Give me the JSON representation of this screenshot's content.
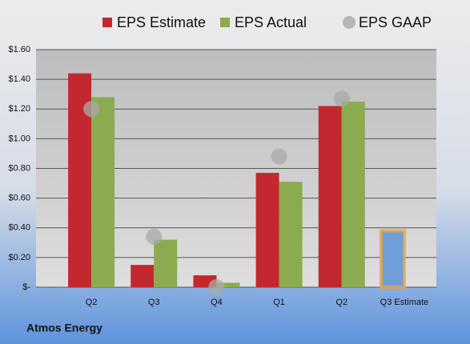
{
  "chart_data": {
    "type": "bar",
    "footer": "Atmos Energy",
    "categories": [
      "Q2",
      "Q3",
      "Q4",
      "Q1",
      "Q2",
      "Q3 Estimate"
    ],
    "series": [
      {
        "name": "EPS Estimate",
        "color": "#c3282e",
        "values": [
          1.44,
          0.15,
          0.08,
          0.77,
          1.22,
          0.38
        ]
      },
      {
        "name": "EPS Actual",
        "color": "#8cab4e",
        "values": [
          1.28,
          0.32,
          0.03,
          0.71,
          1.25,
          null
        ]
      },
      {
        "name": "EPS GAAP",
        "color": "#a9a9a9",
        "marker": "circle",
        "values": [
          1.2,
          0.34,
          0.0,
          0.88,
          1.27,
          null
        ]
      }
    ],
    "highlight_index": 5,
    "highlight_color": "#6f9ed8",
    "highlight_outline": "#f0a346",
    "ylim": [
      0,
      1.6
    ],
    "yticks": [
      {
        "value": 0,
        "label": "$-"
      },
      {
        "value": 0.2,
        "label": "$0.20"
      },
      {
        "value": 0.4,
        "label": "$0.40"
      },
      {
        "value": 0.6,
        "label": "$0.60"
      },
      {
        "value": 0.8,
        "label": "$0.80"
      },
      {
        "value": 1.0,
        "label": "$1.00"
      },
      {
        "value": 1.2,
        "label": "$1.20"
      },
      {
        "value": 1.4,
        "label": "$1.40"
      },
      {
        "value": 1.6,
        "label": "$1.60"
      }
    ],
    "grid": true,
    "legend": "top"
  }
}
